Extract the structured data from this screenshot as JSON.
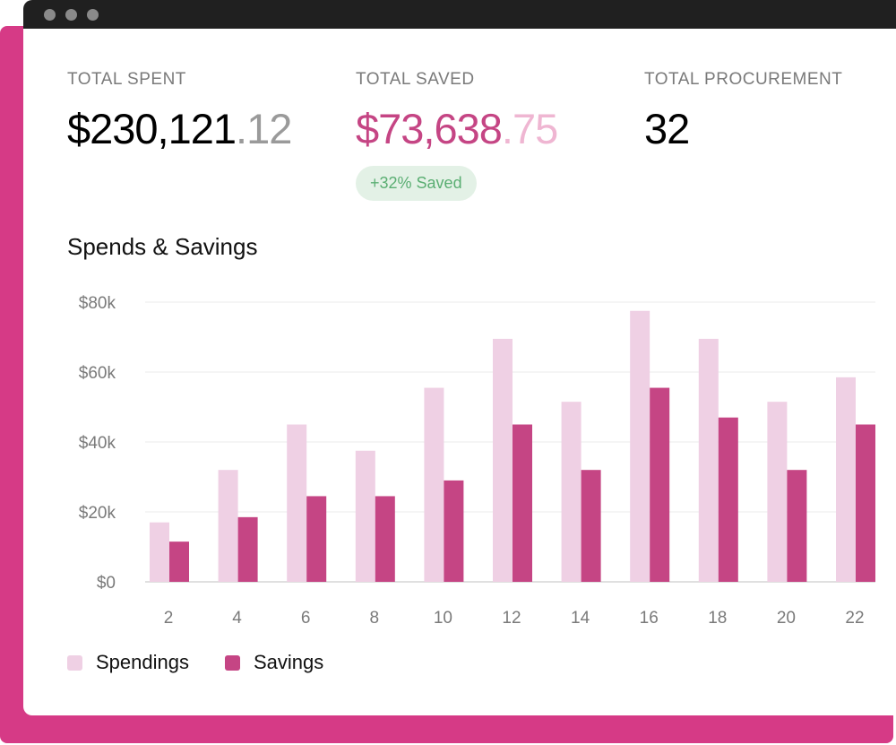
{
  "stats": [
    {
      "label": "TOTAL SPENT",
      "value_main": "$230,121",
      "value_cents": ".12"
    },
    {
      "label": "TOTAL SAVED",
      "value_main": "$73,638",
      "value_cents": ".75",
      "badge": "+32% Saved"
    },
    {
      "label": "TOTAL PROCUREMENT",
      "value_main": "32"
    }
  ],
  "colors": {
    "spendings": "#efd0e4",
    "savings": "#c54584",
    "accent": "#d63a86",
    "badge_bg": "#e3f1e6",
    "badge_text": "#5aae72"
  },
  "chart_data": {
    "type": "bar",
    "title": "Spends & Savings",
    "categories": [
      "2",
      "4",
      "6",
      "8",
      "10",
      "12",
      "14",
      "16",
      "18",
      "20",
      "22"
    ],
    "series": [
      {
        "name": "Spendings",
        "values": [
          17,
          32,
          45,
          37.5,
          55.5,
          69.5,
          51.5,
          77.5,
          69.5,
          51.5,
          58.5
        ]
      },
      {
        "name": "Savings",
        "values": [
          11.5,
          18.5,
          24.5,
          24.5,
          29,
          45,
          32,
          55.5,
          47,
          32,
          45
        ]
      }
    ],
    "yunit": "k",
    "ylim": [
      0,
      80
    ],
    "yticks": [
      "$0",
      "$20k",
      "$40k",
      "$60k",
      "$80k"
    ],
    "grid": true,
    "legend": "bottom-left"
  }
}
